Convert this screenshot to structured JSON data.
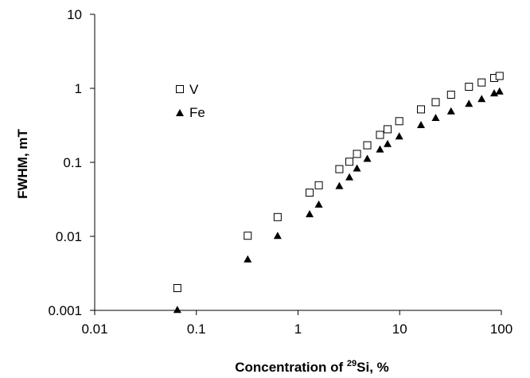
{
  "chart_data": {
    "type": "scatter",
    "title": "",
    "xlabel_prefix": "Concentration of ",
    "xlabel_superscript": "29",
    "xlabel_suffix": "Si, %",
    "ylabel": "FWHM, mT",
    "x_scale": "log",
    "y_scale": "log",
    "xlim": [
      0.01,
      100
    ],
    "ylim": [
      0.001,
      10
    ],
    "x_ticks": [
      0.01,
      0.1,
      1,
      10,
      100
    ],
    "x_tick_labels": [
      "0.01",
      "0.1",
      "1",
      "10",
      "100"
    ],
    "y_ticks": [
      0.001,
      0.01,
      0.1,
      1,
      10
    ],
    "y_tick_labels": [
      "0.001",
      "0.01",
      "0.1",
      "1",
      "10"
    ],
    "grid": false,
    "legend_position": "upper-left",
    "series": [
      {
        "name": "V",
        "marker": "open-square",
        "color": "#000000",
        "points": [
          [
            0.065,
            0.002
          ],
          [
            0.32,
            0.0102
          ],
          [
            0.63,
            0.0182
          ],
          [
            1.3,
            0.039
          ],
          [
            1.6,
            0.049
          ],
          [
            2.55,
            0.081
          ],
          [
            3.2,
            0.102
          ],
          [
            3.8,
            0.13
          ],
          [
            4.8,
            0.17
          ],
          [
            6.4,
            0.235
          ],
          [
            7.6,
            0.28
          ],
          [
            9.9,
            0.36
          ],
          [
            16.2,
            0.52
          ],
          [
            22.6,
            0.65
          ],
          [
            32,
            0.82
          ],
          [
            48,
            1.05
          ],
          [
            64,
            1.2
          ],
          [
            85,
            1.38
          ],
          [
            96,
            1.47
          ]
        ]
      },
      {
        "name": "Fe",
        "marker": "filled-triangle",
        "color": "#000000",
        "points": [
          [
            0.065,
            0.00102
          ],
          [
            0.32,
            0.0049
          ],
          [
            0.63,
            0.0102
          ],
          [
            1.3,
            0.02
          ],
          [
            1.6,
            0.027
          ],
          [
            2.55,
            0.048
          ],
          [
            3.2,
            0.063
          ],
          [
            3.8,
            0.083
          ],
          [
            4.8,
            0.112
          ],
          [
            6.4,
            0.15
          ],
          [
            7.6,
            0.178
          ],
          [
            9.9,
            0.225
          ],
          [
            16.2,
            0.32
          ],
          [
            22.6,
            0.4
          ],
          [
            32,
            0.49
          ],
          [
            48,
            0.62
          ],
          [
            64,
            0.72
          ],
          [
            85,
            0.86
          ],
          [
            96,
            0.91
          ]
        ]
      }
    ]
  }
}
